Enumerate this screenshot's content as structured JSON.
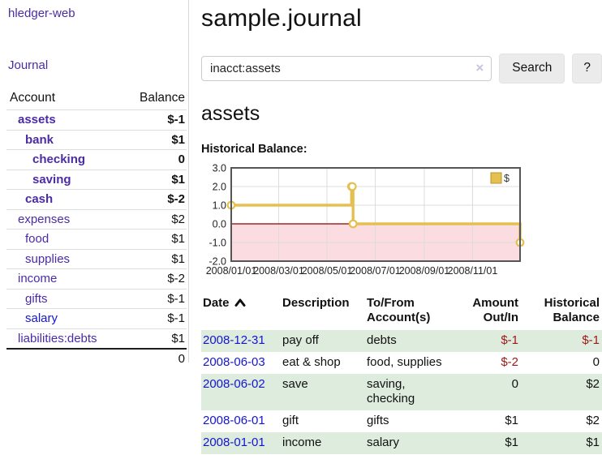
{
  "app": {
    "title": "hledger-web"
  },
  "sidebar": {
    "nav": {
      "journal_label": "Journal"
    },
    "accounts": {
      "headers": {
        "account": "Account",
        "balance": "Balance"
      },
      "rows": [
        {
          "account": "assets",
          "balance": "$-1",
          "indent": 1,
          "bold": true,
          "balance_class": "neg-strong"
        },
        {
          "account": "bank",
          "balance": "$1",
          "indent": 2,
          "bold": true,
          "balance_class": ""
        },
        {
          "account": "checking",
          "balance": "0",
          "indent": 3,
          "bold": true,
          "balance_class": ""
        },
        {
          "account": "saving",
          "balance": "$1",
          "indent": 3,
          "bold": true,
          "balance_class": ""
        },
        {
          "account": "cash",
          "balance": "$-2",
          "indent": 2,
          "bold": true,
          "balance_class": "neg-strong"
        },
        {
          "account": "expenses",
          "balance": "$2",
          "indent": 1,
          "bold": false,
          "balance_class": ""
        },
        {
          "account": "food",
          "balance": "$1",
          "indent": 2,
          "bold": false,
          "balance_class": ""
        },
        {
          "account": "supplies",
          "balance": "$1",
          "indent": 2,
          "bold": false,
          "balance_class": ""
        },
        {
          "account": "income",
          "balance": "$-2",
          "indent": 1,
          "bold": false,
          "balance_class": "neg-soft"
        },
        {
          "account": "gifts",
          "balance": "$-1",
          "indent": 2,
          "bold": false,
          "balance_class": "neg-soft"
        },
        {
          "account": "salary",
          "balance": "$-1",
          "indent": 2,
          "bold": false,
          "balance_class": "neg-soft",
          "link": "blue"
        },
        {
          "account": "liabilities:debts",
          "balance": "$1",
          "indent": 1,
          "bold": false,
          "balance_class": ""
        }
      ],
      "total": "0"
    }
  },
  "main": {
    "title": "sample.journal",
    "search": {
      "value": "inacct:assets",
      "clear_icon": "×",
      "button_label": "Search",
      "help_label": "?"
    },
    "section_title": "assets",
    "chart_label": "Historical Balance:"
  },
  "chart_data": {
    "type": "line",
    "step": true,
    "title": "Historical Balance:",
    "series": [
      {
        "name": "$",
        "points": [
          [
            "2008-01-01",
            1
          ],
          [
            "2008-06-01",
            2
          ],
          [
            "2008-06-02",
            2
          ],
          [
            "2008-06-03",
            0
          ],
          [
            "2008-12-31",
            -1
          ]
        ]
      }
    ],
    "x_range": [
      "2008-01-01",
      "2008-12-31"
    ],
    "ylim": [
      -2,
      3
    ],
    "y_ticks": [
      3.0,
      2.0,
      1.0,
      0.0,
      -1.0,
      -2.0
    ],
    "x_ticks": [
      "2008-01-01",
      "2008-03-01",
      "2008-05-01",
      "2008-07-01",
      "2008-09-01",
      "2008-11-01"
    ],
    "legend": {
      "label": "$",
      "position": "top-right"
    },
    "grid": true,
    "negative_region_shaded": true
  },
  "register": {
    "columns": [
      "Date",
      "Description",
      "To/From Account(s)",
      "Amount Out/In",
      "Historical Balance"
    ],
    "sort": {
      "column": "Date",
      "direction": "ascending"
    },
    "rows": [
      {
        "date": "2008-12-31",
        "description": "pay off",
        "accounts": "debts",
        "amount": "$-1",
        "amount_negative": true,
        "balance": "$-1",
        "balance_negative": true
      },
      {
        "date": "2008-06-03",
        "description": "eat & shop",
        "accounts": "food, supplies",
        "amount": "$-2",
        "amount_negative": true,
        "balance": "0",
        "balance_negative": false
      },
      {
        "date": "2008-06-02",
        "description": "save",
        "accounts": "saving, checking",
        "amount": "0",
        "amount_negative": false,
        "balance": "$2",
        "balance_negative": false
      },
      {
        "date": "2008-06-01",
        "description": "gift",
        "accounts": "gifts",
        "amount": "$1",
        "amount_negative": false,
        "balance": "$2",
        "balance_negative": false
      },
      {
        "date": "2008-01-01",
        "description": "income",
        "accounts": "salary",
        "amount": "$1",
        "amount_negative": false,
        "balance": "$1",
        "balance_negative": false
      }
    ]
  },
  "colors": {
    "purple": "#4b2ba6",
    "blue": "#1515cf",
    "neg-strong": "#9e1717",
    "neg-soft": "#c07474",
    "row-green": "#ddecdd",
    "gold": "#e5c050",
    "gold-dark": "#b8942e",
    "pink": "#fbdce0",
    "zero-line": "#8b0000",
    "chart-border": "#555555",
    "grid": "#dcdcdc",
    "divider": "#d6d6d6",
    "button-bg": "#ebebeb",
    "border-light": "#dddddd"
  }
}
